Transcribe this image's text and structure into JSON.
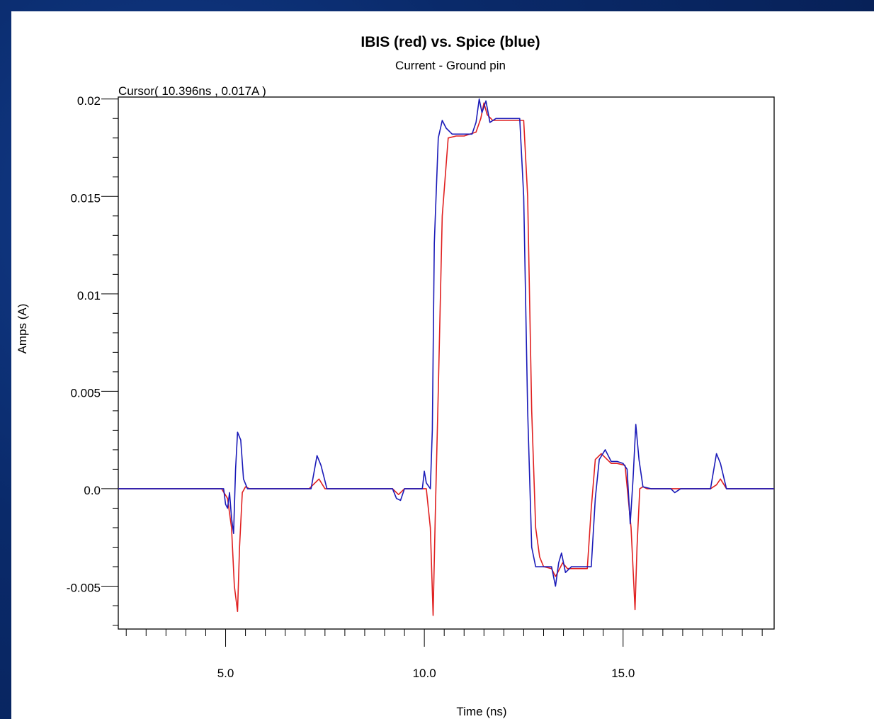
{
  "window": {
    "background": "#0a2a6a"
  },
  "chart_data": {
    "type": "line",
    "title": "IBIS (red) vs. Spice (blue)",
    "subtitle": "Current - Ground pin",
    "cursor_text": "Cursor( 10.396ns , 0.017A )",
    "xlabel": "Time (ns)",
    "ylabel": "Amps (A)",
    "xlim": [
      2.3,
      18.8
    ],
    "ylim": [
      -0.0072,
      0.0201
    ],
    "x_ticks": [
      {
        "value": 5.0,
        "label": "5.0"
      },
      {
        "value": 10.0,
        "label": "10.0"
      },
      {
        "value": 15.0,
        "label": "15.0"
      }
    ],
    "y_ticks": [
      {
        "value": 0.02,
        "label": "0.02"
      },
      {
        "value": 0.015,
        "label": "0.015"
      },
      {
        "value": 0.01,
        "label": "0.01"
      },
      {
        "value": 0.005,
        "label": "0.005"
      },
      {
        "value": 0.0,
        "label": "0.0"
      },
      {
        "value": -0.005,
        "label": "-0.005"
      }
    ],
    "grid": false,
    "series": [
      {
        "name": "IBIS",
        "color": "#e02020",
        "x": [
          2.3,
          4.9,
          5.05,
          5.15,
          5.22,
          5.3,
          5.35,
          5.42,
          5.5,
          5.6,
          7.1,
          7.25,
          7.35,
          7.5,
          9.2,
          9.35,
          9.5,
          9.8,
          10.05,
          10.15,
          10.22,
          10.28,
          10.35,
          10.45,
          10.6,
          10.8,
          11.0,
          11.3,
          11.42,
          11.5,
          11.58,
          11.72,
          11.85,
          12.0,
          12.5,
          12.6,
          12.7,
          12.8,
          12.9,
          13.0,
          13.2,
          13.3,
          13.38,
          13.48,
          13.6,
          13.8,
          14.1,
          14.2,
          14.3,
          14.45,
          14.6,
          14.7,
          14.85,
          15.05,
          15.2,
          15.3,
          15.35,
          15.42,
          15.5,
          15.6,
          17.2,
          17.35,
          17.45,
          17.6,
          18.2,
          18.8
        ],
        "y": [
          0.0,
          0.0,
          -0.0005,
          -0.002,
          -0.005,
          -0.0063,
          -0.003,
          -0.0002,
          0.0001,
          0.0,
          0.0,
          0.0003,
          0.0005,
          0.0,
          0.0,
          -0.0003,
          0.0,
          0.0,
          0.0,
          -0.002,
          -0.0065,
          -0.001,
          0.005,
          0.014,
          0.018,
          0.0181,
          0.0181,
          0.0183,
          0.019,
          0.0198,
          0.0192,
          0.0189,
          0.0189,
          0.0189,
          0.0189,
          0.015,
          0.004,
          -0.002,
          -0.0035,
          -0.004,
          -0.0041,
          -0.0045,
          -0.0042,
          -0.0038,
          -0.0041,
          -0.0041,
          -0.0041,
          -0.001,
          0.0015,
          0.0018,
          0.0015,
          0.0013,
          0.0013,
          0.0012,
          -0.002,
          -0.0062,
          -0.003,
          0.0,
          0.0001,
          0.0,
          0.0,
          0.0002,
          0.0005,
          0.0,
          0.0,
          0.0
        ]
      },
      {
        "name": "Spice",
        "color": "#1a1ab8",
        "x": [
          2.3,
          4.95,
          5.0,
          5.05,
          5.1,
          5.15,
          5.2,
          5.25,
          5.3,
          5.38,
          5.45,
          5.55,
          5.7,
          6.0,
          7.15,
          7.3,
          7.4,
          7.55,
          9.2,
          9.3,
          9.4,
          9.5,
          9.7,
          9.95,
          10.0,
          10.05,
          10.15,
          10.2,
          10.25,
          10.35,
          10.45,
          10.55,
          10.7,
          10.9,
          11.2,
          11.3,
          11.38,
          11.45,
          11.55,
          11.65,
          11.8,
          12.0,
          12.4,
          12.5,
          12.6,
          12.7,
          12.8,
          13.0,
          13.2,
          13.3,
          13.38,
          13.45,
          13.55,
          13.7,
          14.0,
          14.2,
          14.3,
          14.4,
          14.55,
          14.7,
          14.85,
          15.0,
          15.1,
          15.18,
          15.25,
          15.32,
          15.4,
          15.5,
          15.7,
          16.2,
          16.3,
          16.45,
          16.6,
          17.2,
          17.35,
          17.45,
          17.6,
          18.2,
          18.8
        ],
        "y": [
          0.0,
          0.0,
          -0.0008,
          -0.001,
          -0.0002,
          -0.0015,
          -0.0023,
          0.001,
          0.0029,
          0.0025,
          0.0005,
          0.0,
          0.0,
          0.0,
          0.0,
          0.0017,
          0.0012,
          0.0,
          0.0,
          -0.0005,
          -0.0006,
          0.0,
          0.0,
          0.0,
          0.0009,
          0.0003,
          0.0,
          0.003,
          0.0126,
          0.018,
          0.0189,
          0.0185,
          0.0182,
          0.0182,
          0.0182,
          0.0188,
          0.02,
          0.0193,
          0.0199,
          0.0188,
          0.019,
          0.019,
          0.019,
          0.015,
          0.004,
          -0.003,
          -0.004,
          -0.004,
          -0.004,
          -0.005,
          -0.0038,
          -0.0033,
          -0.0043,
          -0.004,
          -0.004,
          -0.004,
          -0.0005,
          0.0015,
          0.002,
          0.0014,
          0.0014,
          0.0013,
          0.001,
          -0.0018,
          0.0005,
          0.0033,
          0.0015,
          0.0001,
          0.0,
          0.0,
          -0.0002,
          0.0,
          0.0,
          0.0,
          0.0018,
          0.0013,
          0.0,
          0.0,
          0.0
        ]
      }
    ]
  }
}
